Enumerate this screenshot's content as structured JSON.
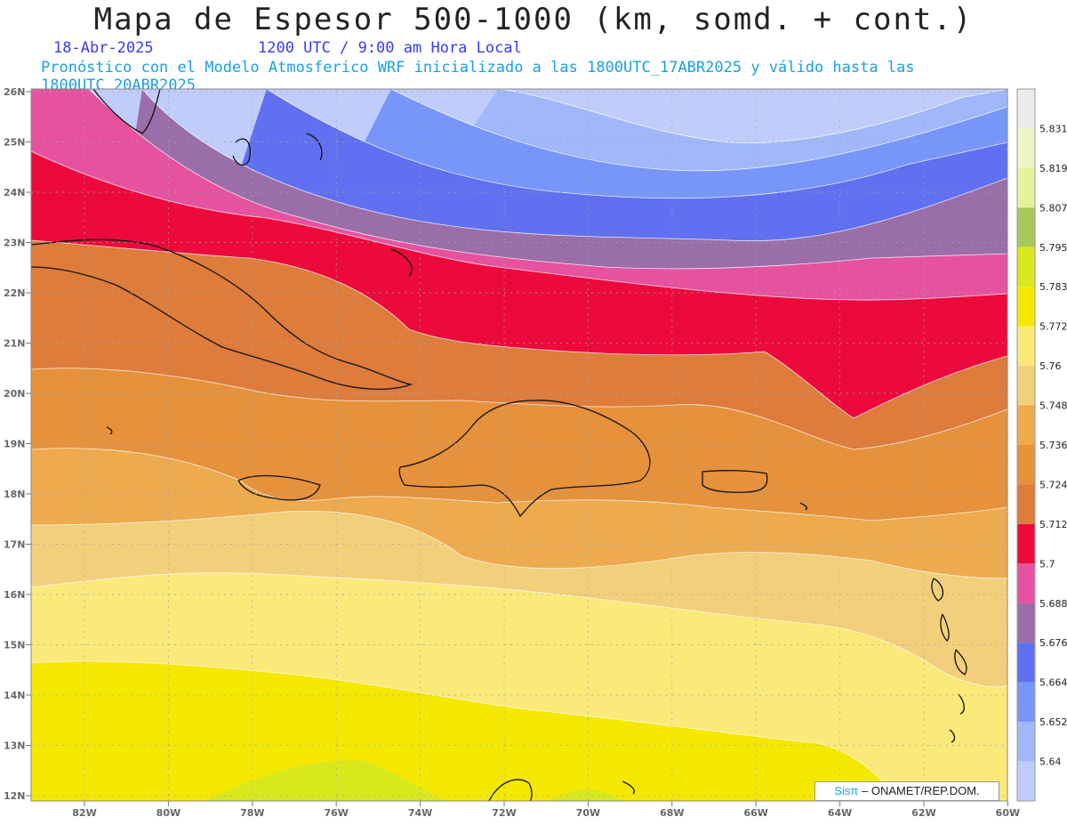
{
  "title": "Mapa de Espesor 500-1000 (km, somd. + cont.)",
  "date": "18-Abr-2025",
  "time": "1200 UTC / 9:00 am Hora Local",
  "forecast": "Pronóstico con el Modelo Atmosferico WRF inicializado a las 1800UTC_17ABR2025 y válido hasta las  1800UTC_20ABR2025",
  "lat_labels": [
    "26N",
    "25N",
    "24N",
    "23N",
    "22N",
    "21N",
    "20N",
    "19N",
    "18N",
    "17N",
    "16N",
    "15N",
    "14N",
    "13N",
    "12N"
  ],
  "lon_labels": [
    "82W",
    "80W",
    "78W",
    "76W",
    "74W",
    "72W",
    "70W",
    "68W",
    "66W",
    "64W",
    "62W",
    "60W"
  ],
  "colorbar": {
    "labels": [
      "5.831",
      "5.819",
      "5.807",
      "5.795",
      "5.783",
      "5.772",
      "5.76",
      "5.748",
      "5.736",
      "5.724",
      "5.712",
      "5.7",
      "5.688",
      "5.676",
      "5.664",
      "5.652",
      "5.64"
    ],
    "colors": [
      "#ebebeb",
      "#eef6c8",
      "#e4f39a",
      "#a8c85a",
      "#d8e81c",
      "#f5e800",
      "#fbe97a",
      "#f2cf7a",
      "#eeaa4e",
      "#e6913c",
      "#de7c3c",
      "#ec0a3c",
      "#e652a0",
      "#9a6ea8",
      "#6070f0",
      "#7896fa",
      "#a0b8fa",
      "#c0cdfa"
    ]
  },
  "bands": [
    "#c0cdfa",
    "#a0b8fa",
    "#7896fa",
    "#6070f0",
    "#9a6ea8",
    "#e652a0",
    "#ec0a3c",
    "#de7c3c",
    "#e6913c",
    "#eeaa4e",
    "#f2cf7a",
    "#fbe97a",
    "#f5e800",
    "#d8e81c"
  ],
  "credit": {
    "brand": "Sisπ",
    "text": "– ONAMET/REP.DOM."
  }
}
